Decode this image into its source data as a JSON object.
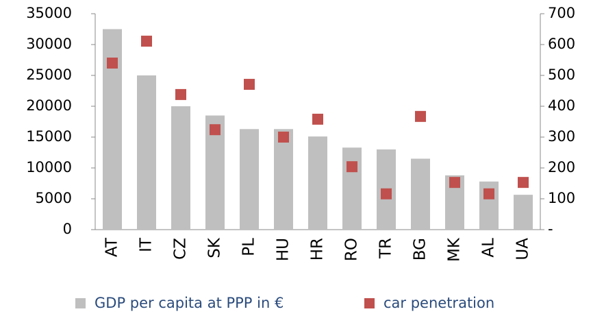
{
  "chart_data": {
    "type": "bar_scatter",
    "categories": [
      "AT",
      "IT",
      "CZ",
      "SK",
      "PL",
      "HU",
      "HR",
      "RO",
      "TR",
      "BG",
      "MK",
      "AL",
      "UA"
    ],
    "series": [
      {
        "name": "GDP per capita at PPP in €",
        "color": "#bfbfbf",
        "type": "bar",
        "axis": "y",
        "values": [
          32500,
          25000,
          20000,
          18500,
          16300,
          16300,
          15100,
          13300,
          13000,
          11500,
          8800,
          7800,
          5650
        ]
      },
      {
        "name": "car penetration",
        "color": "#c0504d",
        "type": "scatter",
        "axis": "y2",
        "values": [
          540,
          611,
          438,
          324,
          471,
          300,
          358,
          204,
          116,
          367,
          153,
          116,
          153
        ]
      }
    ],
    "ylim": [
      0,
      35000
    ],
    "yticks": [
      0,
      5000,
      10000,
      15000,
      20000,
      25000,
      30000,
      35000
    ],
    "y2lim": [
      0,
      700
    ],
    "y2ticks": [
      {
        "value": 0,
        "label": "-"
      },
      100,
      200,
      300,
      400,
      500,
      600,
      700
    ],
    "legend": "bottom"
  }
}
